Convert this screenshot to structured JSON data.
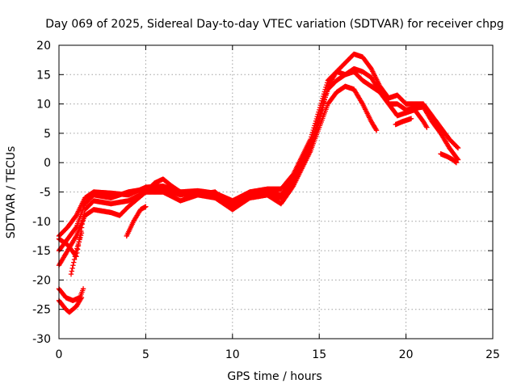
{
  "chart_data": {
    "type": "scatter",
    "title": "Day 069 of 2025, Sidereal Day-to-day VTEC variation (SDTVAR) for receiver chpg",
    "xlabel": "GPS time / hours",
    "ylabel": "SDTVAR / TECUs",
    "xlim": [
      0,
      25
    ],
    "ylim": [
      -30,
      20
    ],
    "xticks": [
      0,
      5,
      10,
      15,
      20,
      25
    ],
    "yticks": [
      -30,
      -25,
      -20,
      -15,
      -10,
      -5,
      0,
      5,
      10,
      15,
      20
    ],
    "grid": true,
    "legend": "none",
    "marker": "+",
    "color": "#ff0000",
    "series": [
      {
        "name": "track-1",
        "points": [
          [
            0,
            -12.5
          ],
          [
            0.5,
            -11
          ],
          [
            1,
            -9
          ],
          [
            1.5,
            -6
          ],
          [
            2,
            -5
          ],
          [
            3,
            -5.2
          ],
          [
            4,
            -5.5
          ],
          [
            5,
            -4.2
          ],
          [
            6,
            -4
          ],
          [
            7,
            -5
          ],
          [
            8,
            -4.8
          ],
          [
            9,
            -5.2
          ],
          [
            10,
            -6.5
          ],
          [
            11,
            -5
          ],
          [
            12,
            -4.5
          ],
          [
            12.8,
            -4.5
          ],
          [
            13.5,
            -2
          ],
          [
            14,
            1
          ],
          [
            14.5,
            4
          ],
          [
            15,
            9
          ],
          [
            15.5,
            14
          ],
          [
            16,
            15.5
          ],
          [
            16.5,
            17
          ],
          [
            17,
            18.5
          ],
          [
            17.5,
            18
          ],
          [
            18,
            16
          ],
          [
            18.5,
            13
          ],
          [
            19,
            11
          ],
          [
            19.5,
            11.5
          ],
          [
            20,
            10
          ],
          [
            21,
            10
          ],
          [
            21.5,
            8
          ],
          [
            22,
            6
          ],
          [
            22.5,
            4
          ],
          [
            23,
            2.5
          ]
        ]
      },
      {
        "name": "track-2",
        "points": [
          [
            0,
            -15
          ],
          [
            0.5,
            -13
          ],
          [
            1,
            -11
          ],
          [
            1.5,
            -7
          ],
          [
            2,
            -5.5
          ],
          [
            3,
            -6
          ],
          [
            4,
            -5
          ],
          [
            5,
            -4.5
          ],
          [
            6,
            -4.5
          ],
          [
            7,
            -5.5
          ],
          [
            8,
            -5
          ],
          [
            9,
            -5.5
          ],
          [
            10,
            -7
          ],
          [
            11,
            -5.5
          ],
          [
            12,
            -5
          ],
          [
            12.8,
            -5.5
          ],
          [
            13.5,
            -3
          ],
          [
            14,
            0
          ],
          [
            14.5,
            3
          ],
          [
            15,
            8
          ],
          [
            15.5,
            12.5
          ],
          [
            16,
            14
          ],
          [
            16.5,
            15
          ],
          [
            17,
            16
          ],
          [
            17.5,
            15.5
          ],
          [
            18,
            14.5
          ],
          [
            18.5,
            12
          ],
          [
            19,
            10
          ],
          [
            19.5,
            10
          ],
          [
            20,
            9
          ],
          [
            21,
            9.5
          ],
          [
            21.5,
            7
          ],
          [
            22,
            5
          ],
          [
            22.5,
            2.5
          ],
          [
            23,
            0.5
          ]
        ]
      },
      {
        "name": "track-3",
        "points": [
          [
            0,
            -17.5
          ],
          [
            0.5,
            -15
          ],
          [
            1,
            -12.5
          ],
          [
            1.5,
            -9
          ],
          [
            2,
            -8
          ],
          [
            3,
            -8.5
          ],
          [
            3.5,
            -9
          ],
          [
            4,
            -7.5
          ],
          [
            5,
            -5
          ],
          [
            6,
            -5
          ],
          [
            7,
            -6.5
          ],
          [
            8,
            -5.5
          ],
          [
            9,
            -6
          ],
          [
            10,
            -8
          ],
          [
            11,
            -6
          ],
          [
            12,
            -5.5
          ],
          [
            12.8,
            -7
          ],
          [
            13.5,
            -4
          ],
          [
            14,
            -1
          ],
          [
            14.5,
            2
          ],
          [
            15,
            6
          ],
          [
            15.5,
            10
          ],
          [
            16,
            12
          ],
          [
            16.5,
            13
          ],
          [
            17,
            12.5
          ],
          [
            17.5,
            10
          ],
          [
            18,
            7
          ],
          [
            18.3,
            5.5
          ]
        ]
      },
      {
        "name": "track-4",
        "points": [
          [
            0,
            -13
          ],
          [
            0.5,
            -14
          ],
          [
            1,
            -16
          ],
          [
            1.5,
            -8
          ],
          [
            2,
            -6.5
          ],
          [
            3,
            -7
          ],
          [
            4,
            -6.5
          ],
          [
            5,
            -5
          ],
          [
            5.5,
            -3.5
          ],
          [
            6,
            -2.8
          ],
          [
            6.5,
            -4
          ],
          [
            7,
            -5
          ],
          [
            8,
            -5.5
          ],
          [
            9,
            -5
          ],
          [
            10,
            -7.5
          ],
          [
            11,
            -6
          ],
          [
            12,
            -5.5
          ],
          [
            12.8,
            -6
          ],
          [
            13.5,
            -3.5
          ],
          [
            14,
            -0.5
          ],
          [
            14.5,
            2.5
          ],
          [
            15,
            7
          ],
          [
            15.5,
            13
          ],
          [
            16,
            15.5
          ],
          [
            16.5,
            15
          ],
          [
            17,
            15.5
          ],
          [
            17.5,
            14
          ],
          [
            18,
            13
          ],
          [
            18.5,
            12
          ],
          [
            19,
            10
          ],
          [
            19.5,
            8
          ],
          [
            20,
            8.5
          ],
          [
            20.5,
            9
          ],
          [
            21,
            7
          ],
          [
            21.2,
            6
          ]
        ]
      },
      {
        "name": "track-5",
        "points": [
          [
            0.7,
            -19
          ],
          [
            1,
            -15
          ],
          [
            1.3,
            -12
          ]
        ]
      },
      {
        "name": "track-6",
        "points": [
          [
            3.9,
            -12.5
          ],
          [
            4.3,
            -10
          ],
          [
            4.7,
            -8
          ],
          [
            5,
            -7.5
          ]
        ]
      },
      {
        "name": "track-7",
        "points": [
          [
            0,
            -21.5
          ],
          [
            0.4,
            -23
          ],
          [
            0.8,
            -23.5
          ],
          [
            1.2,
            -23
          ],
          [
            1.4,
            -21.5
          ]
        ]
      },
      {
        "name": "track-8",
        "points": [
          [
            0,
            -23.5
          ],
          [
            0.4,
            -25
          ],
          [
            0.6,
            -25.5
          ],
          [
            1,
            -24.5
          ],
          [
            1.3,
            -23
          ]
        ]
      },
      {
        "name": "track-9",
        "points": [
          [
            19.4,
            6.5
          ],
          [
            19.8,
            7
          ],
          [
            20.3,
            7.5
          ]
        ]
      },
      {
        "name": "track-10",
        "points": [
          [
            22,
            1.5
          ],
          [
            22.4,
            1
          ],
          [
            22.7,
            0.5
          ],
          [
            22.9,
            0
          ]
        ]
      }
    ]
  }
}
